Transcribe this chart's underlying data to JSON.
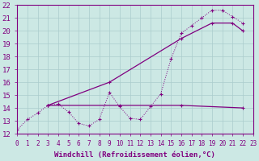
{
  "xlabel": "Windchill (Refroidissement éolien,°C)",
  "xlim": [
    0,
    23
  ],
  "ylim": [
    12,
    22
  ],
  "xticks": [
    0,
    1,
    2,
    3,
    4,
    5,
    6,
    7,
    8,
    9,
    10,
    11,
    12,
    13,
    14,
    15,
    16,
    17,
    18,
    19,
    20,
    21,
    22,
    23
  ],
  "yticks": [
    12,
    13,
    14,
    15,
    16,
    17,
    18,
    19,
    20,
    21,
    22
  ],
  "bg_color": "#cce8e4",
  "line_color": "#800080",
  "grid_color": "#aacccc",
  "line1_x": [
    0,
    1,
    2,
    3,
    4,
    5,
    6,
    7,
    8,
    9,
    10,
    11,
    12,
    13,
    14,
    15,
    16,
    17,
    18,
    19,
    20,
    21,
    22
  ],
  "line1_y": [
    12.3,
    13.1,
    13.6,
    14.2,
    14.3,
    13.7,
    12.8,
    12.6,
    13.1,
    15.2,
    14.1,
    13.2,
    13.1,
    14.1,
    15.1,
    17.8,
    19.8,
    20.4,
    21.0,
    21.6,
    21.6,
    21.1,
    20.6
  ],
  "line2_x": [
    3,
    9,
    16,
    19,
    21,
    22
  ],
  "line2_y": [
    14.2,
    16.0,
    19.4,
    20.6,
    20.6,
    20.0
  ],
  "line3_x": [
    3,
    10,
    16,
    22
  ],
  "line3_y": [
    14.2,
    14.2,
    14.2,
    14.0
  ],
  "font_size_xlabel": 6.5,
  "font_size_ytick": 6.5,
  "font_size_xtick": 5.5
}
